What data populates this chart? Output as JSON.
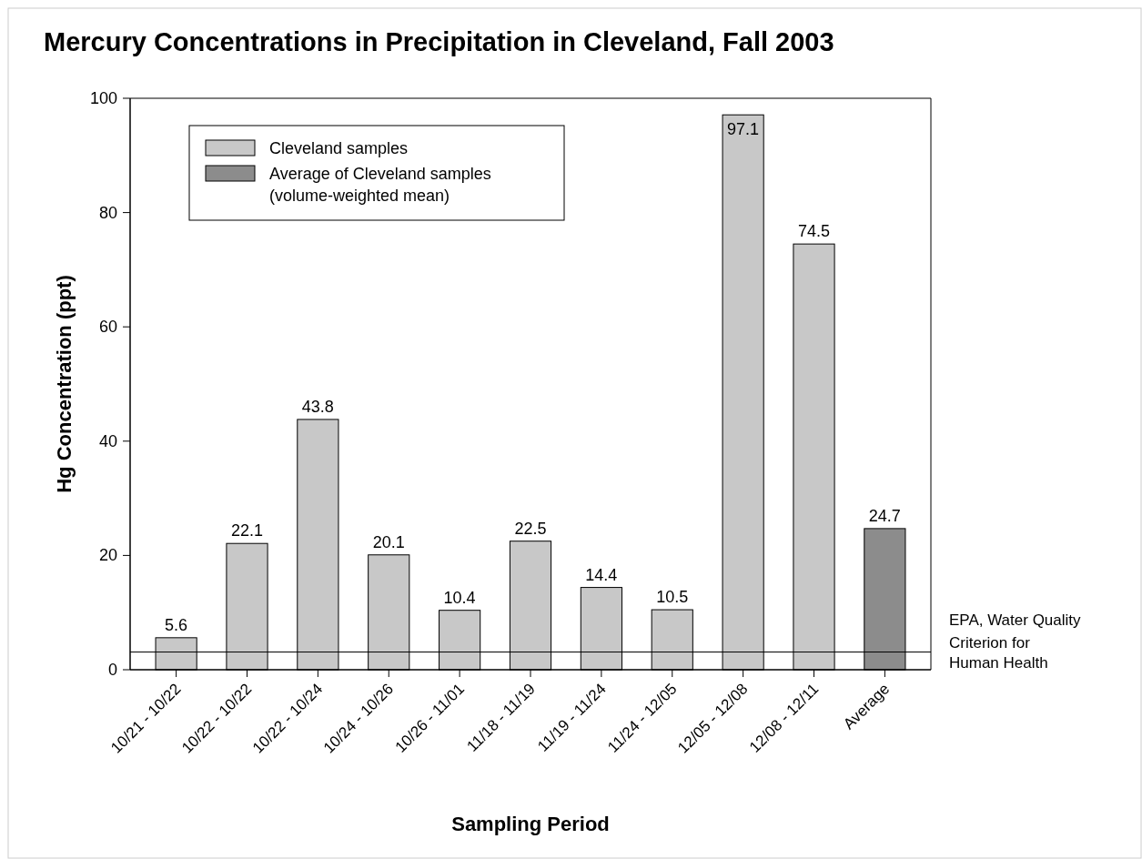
{
  "chart_data": {
    "type": "bar",
    "title": "Mercury Concentrations in Precipitation in Cleveland, Fall 2003",
    "xlabel": "Sampling Period",
    "ylabel": "Hg Concentration (ppt)",
    "categories": [
      "10/21 - 10/22",
      "10/22 - 10/22",
      "10/22 - 10/24",
      "10/24 - 10/26",
      "10/26 - 11/01",
      "11/18 - 11/19",
      "11/19 - 11/24",
      "11/24 - 12/05",
      "12/05 - 12/08",
      "12/08 - 12/11",
      "Average"
    ],
    "series": [
      {
        "name": "Cleveland samples",
        "color": "#c8c8c8",
        "values": [
          5.6,
          22.1,
          43.8,
          20.1,
          10.4,
          22.5,
          14.4,
          10.5,
          97.1,
          74.5,
          null
        ]
      },
      {
        "name": "Average of Cleveland samples (volume-weighted mean)",
        "color": "#8c8c8c",
        "values": [
          null,
          null,
          null,
          null,
          null,
          null,
          null,
          null,
          null,
          null,
          24.7
        ]
      }
    ],
    "ylim": [
      0,
      100
    ],
    "yticks": [
      0,
      20,
      40,
      60,
      80,
      100
    ],
    "data_labels": true,
    "legend": "top left",
    "ref_lines": [
      {
        "axis": "y",
        "value": 3.1,
        "label": "EPA, Water Quality Criterion for Human Health",
        "color": "#000000"
      }
    ]
  }
}
